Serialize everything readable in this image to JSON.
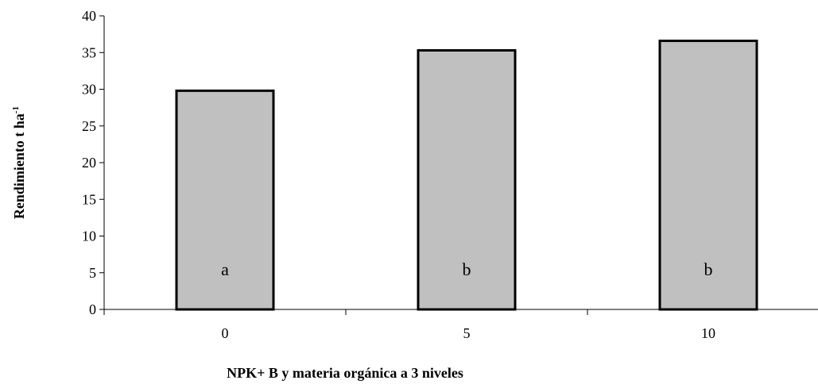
{
  "chart_data": {
    "type": "bar",
    "title": "",
    "categories": [
      "0",
      "5",
      "10"
    ],
    "values": [
      29.8,
      35.3,
      36.6
    ],
    "bar_labels": [
      "a",
      "b",
      "b"
    ],
    "xlabel": "NPK+ B y materia orgánica a 3 niveles",
    "ylabel": {
      "text": "Rendimiento t ha",
      "superscript": "-1"
    },
    "ylim": [
      0,
      40
    ],
    "yticks": [
      "0",
      "5",
      "10",
      "15",
      "20",
      "25",
      "30",
      "35",
      "40"
    ],
    "grid": false,
    "legend": "none",
    "colors": {
      "bar_fill": "#c0c0c0",
      "bar_stroke": "#000000",
      "axis": "#000000"
    }
  }
}
